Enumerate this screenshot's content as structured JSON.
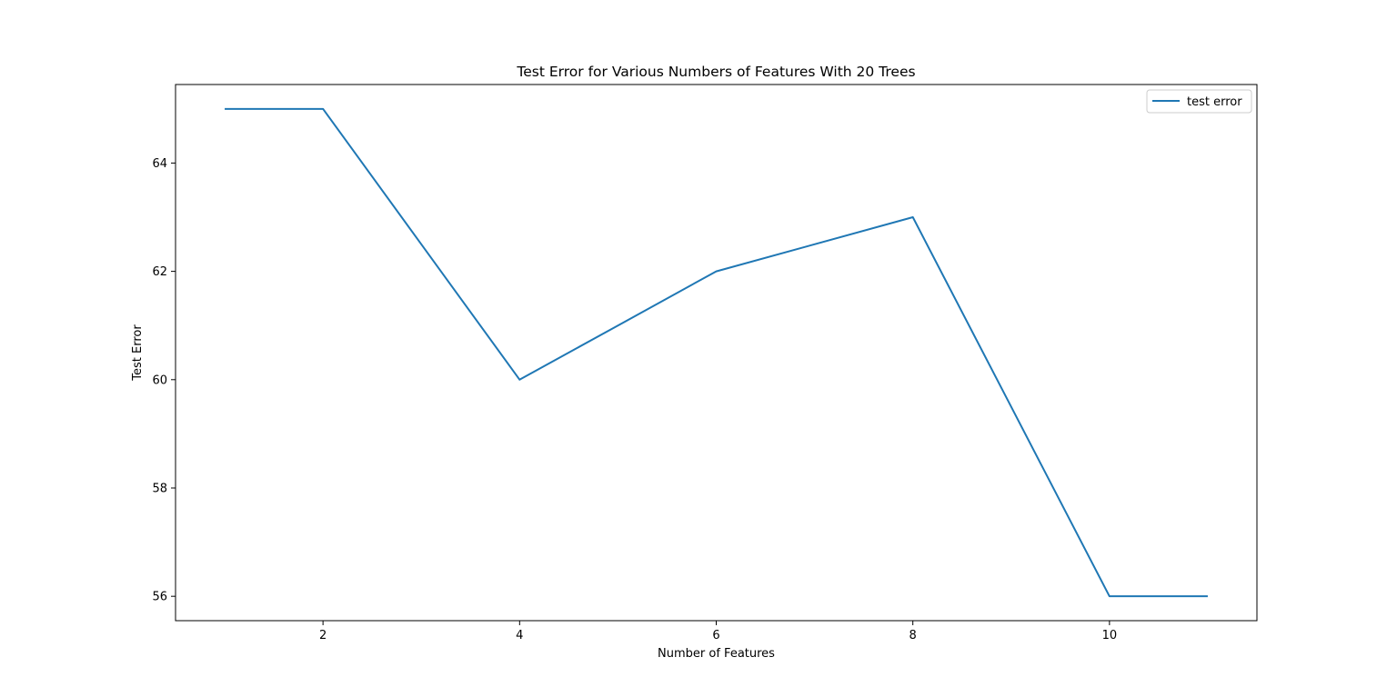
{
  "chart_data": {
    "type": "line",
    "title": "Test Error for Various Numbers of Features With 20 Trees",
    "xlabel": "Number of Features",
    "ylabel": "Test Error",
    "x": [
      1,
      2,
      3,
      4,
      5,
      6,
      7,
      8,
      9,
      10,
      11
    ],
    "series": [
      {
        "name": "test error",
        "color": "#1f77b4",
        "values": [
          65,
          65,
          62.5,
          60,
          61,
          62,
          62.5,
          63,
          59.5,
          56,
          56
        ]
      }
    ],
    "xlim": [
      0.5,
      11.5
    ],
    "ylim": [
      55.55,
      65.45
    ],
    "xticks": [
      2,
      4,
      6,
      8,
      10
    ],
    "yticks": [
      56,
      58,
      60,
      62,
      64
    ],
    "grid": false,
    "legend_position": "top-right"
  }
}
